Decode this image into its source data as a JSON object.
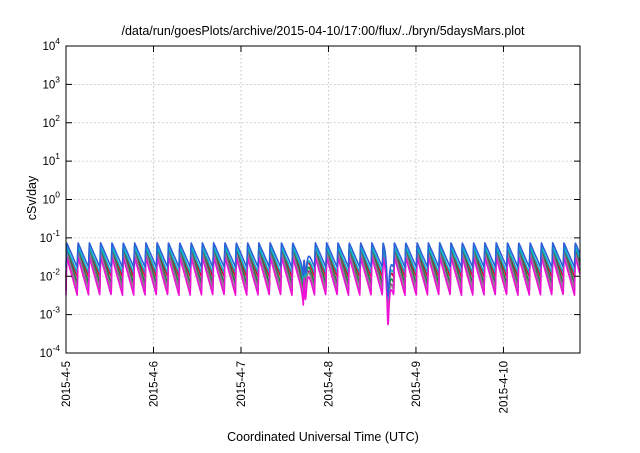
{
  "chart_data": {
    "type": "line",
    "title": "/data/run/goesPlots/archive/2015-04-10/17:00/flux/../bryn/5daysMars.plot",
    "xlabel": "Coordinated Universal Time (UTC)",
    "ylabel": "cSv/day",
    "yscale": "log",
    "ylim": [
      0.0001,
      10000
    ],
    "xlim": [
      "2015-04-05T00:00",
      "2015-04-10T21:00"
    ],
    "grid": true,
    "x_ticks": [
      "2015-4-5",
      "2015-4-6",
      "2015-4-7",
      "2015-4-8",
      "2015-4-9",
      "2015-4-10"
    ],
    "y_ticks": [
      {
        "base": "10",
        "exp": "-4",
        "value": 0.0001
      },
      {
        "base": "10",
        "exp": "-3",
        "value": 0.001
      },
      {
        "base": "10",
        "exp": "-2",
        "value": 0.01
      },
      {
        "base": "10",
        "exp": "-1",
        "value": 0.1
      },
      {
        "base": "10",
        "exp": "0",
        "value": 1
      },
      {
        "base": "10",
        "exp": "1",
        "value": 10
      },
      {
        "base": "10",
        "exp": "2",
        "value": 100
      },
      {
        "base": "10",
        "exp": "3",
        "value": 1000
      },
      {
        "base": "10",
        "exp": "4",
        "value": 10000
      }
    ],
    "series": [
      {
        "color": "#e0002a",
        "peak": 0.055,
        "trough": 0.0095,
        "dip_factor": 1.0
      },
      {
        "color": "#1a8a3a",
        "peak": 0.05,
        "trough": 0.0065,
        "dip_factor": 0.55
      },
      {
        "color": "#9b30a8",
        "peak": 0.045,
        "trough": 0.0045,
        "dip_factor": 0.45
      },
      {
        "color": "#8a8a8a",
        "peak": 0.04,
        "trough": 0.0042,
        "dip_factor": 0.45
      },
      {
        "color": "#00b7c4",
        "peak": 0.06,
        "trough": 0.012,
        "dip_factor": 0.6
      },
      {
        "color": "#ee10d6",
        "peak": 0.032,
        "trough": 0.0032,
        "dip_factor": 0.3
      },
      {
        "color": "#2c5fd8",
        "peak": 0.075,
        "trough": 0.017,
        "dip_factor": 0.55
      }
    ],
    "pulses": {
      "period_hours": 3.1,
      "dips": [
        {
          "time": "2015-04-07T17:40",
          "factor": 0.35
        },
        {
          "time": "2015-04-08T16:20",
          "factor": 0.15
        }
      ]
    }
  }
}
